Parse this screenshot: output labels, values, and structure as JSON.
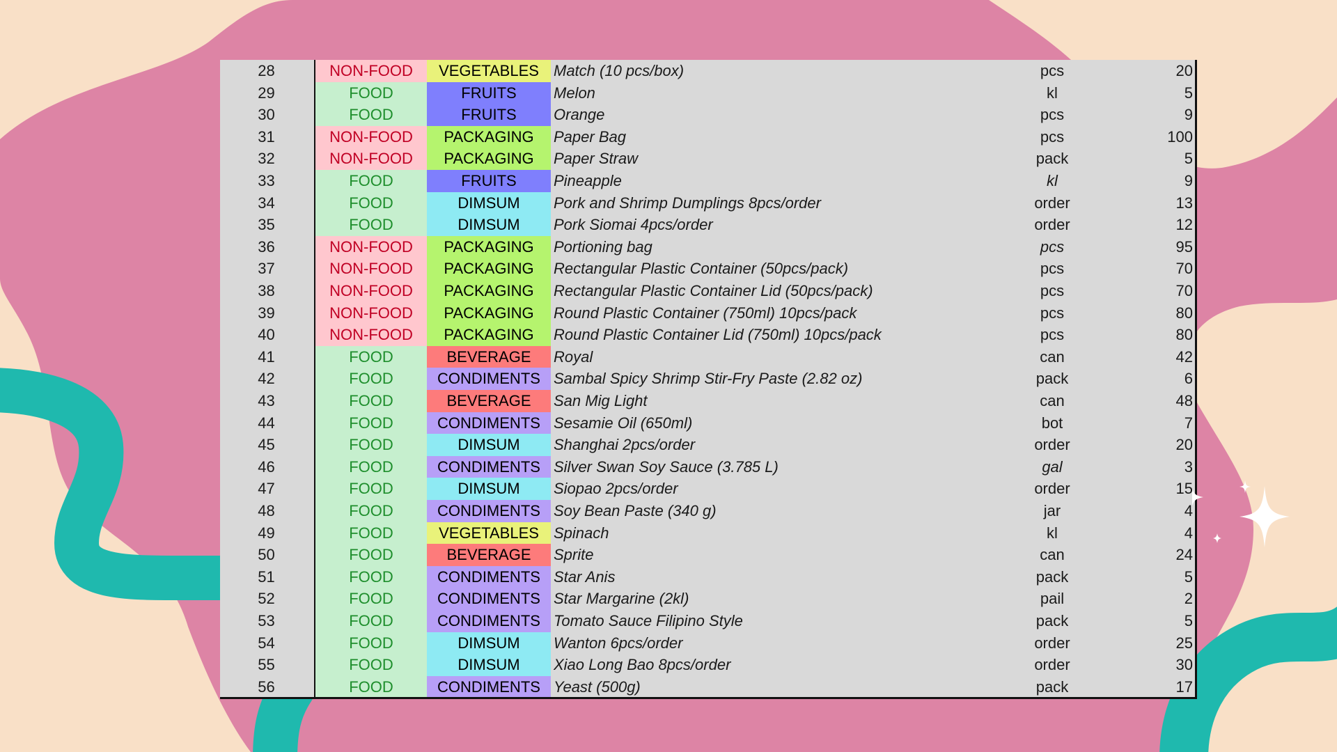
{
  "colors": {
    "background": "#f9e0c7",
    "blob_pink": "#dd84a5",
    "ribbon_teal": "#1fb9ae",
    "sheet_gray": "#d9d9d9",
    "type_food_fill": "#c6efce",
    "type_food_text": "#1e8e2c",
    "type_nonfood_fill": "#ffc7ce",
    "type_nonfood_text": "#c00024",
    "cat_vegetables": "#e9f27a",
    "cat_fruits": "#7f7ffd",
    "cat_packaging": "#b5f46e",
    "cat_dimsum": "#8eeaf3",
    "cat_beverage": "#fd7b7b",
    "cat_condiments": "#b79ff7"
  },
  "icons": {
    "sparkle": "sparkle-icon"
  },
  "rows": [
    {
      "num": "28",
      "type": "NON-FOOD",
      "category": "VEGETABLES",
      "item": "Match (10 pcs/box)",
      "unit": "pcs",
      "qty": "20"
    },
    {
      "num": "29",
      "type": "FOOD",
      "category": "FRUITS",
      "item": "Melon",
      "unit": "kl",
      "qty": "5"
    },
    {
      "num": "30",
      "type": "FOOD",
      "category": "FRUITS",
      "item": "Orange",
      "unit": "pcs",
      "qty": "9"
    },
    {
      "num": "31",
      "type": "NON-FOOD",
      "category": "PACKAGING",
      "item": "Paper Bag",
      "unit": "pcs",
      "qty": "100"
    },
    {
      "num": "32",
      "type": "NON-FOOD",
      "category": "PACKAGING",
      "item": "Paper Straw",
      "unit": "pack",
      "qty": "5"
    },
    {
      "num": "33",
      "type": "FOOD",
      "category": "FRUITS",
      "item": "Pineapple",
      "unit": "kl",
      "qty": "9"
    },
    {
      "num": "34",
      "type": "FOOD",
      "category": "DIMSUM",
      "item": "Pork and Shrimp Dumplings 8pcs/order",
      "unit": "order",
      "qty": "13"
    },
    {
      "num": "35",
      "type": "FOOD",
      "category": "DIMSUM",
      "item": "Pork Siomai 4pcs/order",
      "unit": "order",
      "qty": "12"
    },
    {
      "num": "36",
      "type": "NON-FOOD",
      "category": "PACKAGING",
      "item": "Portioning bag",
      "unit": "pcs",
      "qty": "95"
    },
    {
      "num": "37",
      "type": "NON-FOOD",
      "category": "PACKAGING",
      "item": "Rectangular Plastic Container (50pcs/pack)",
      "unit": "pcs",
      "qty": "70"
    },
    {
      "num": "38",
      "type": "NON-FOOD",
      "category": "PACKAGING",
      "item": "Rectangular Plastic Container Lid (50pcs/pack)",
      "unit": "pcs",
      "qty": "70"
    },
    {
      "num": "39",
      "type": "NON-FOOD",
      "category": "PACKAGING",
      "item": "Round Plastic Container (750ml) 10pcs/pack",
      "unit": "pcs",
      "qty": "80"
    },
    {
      "num": "40",
      "type": "NON-FOOD",
      "category": "PACKAGING",
      "item": "Round Plastic Container Lid (750ml) 10pcs/pack",
      "unit": "pcs",
      "qty": "80"
    },
    {
      "num": "41",
      "type": "FOOD",
      "category": "BEVERAGE",
      "item": "Royal",
      "unit": "can",
      "qty": "42"
    },
    {
      "num": "42",
      "type": "FOOD",
      "category": "CONDIMENTS",
      "item": "Sambal Spicy Shrimp Stir-Fry Paste (2.82 oz)",
      "unit": "pack",
      "qty": "6"
    },
    {
      "num": "43",
      "type": "FOOD",
      "category": "BEVERAGE",
      "item": "San Mig Light",
      "unit": "can",
      "qty": "48"
    },
    {
      "num": "44",
      "type": "FOOD",
      "category": "CONDIMENTS",
      "item": "Sesamie Oil (650ml)",
      "unit": "bot",
      "qty": "7"
    },
    {
      "num": "45",
      "type": "FOOD",
      "category": "DIMSUM",
      "item": "Shanghai 2pcs/order",
      "unit": "order",
      "qty": "20"
    },
    {
      "num": "46",
      "type": "FOOD",
      "category": "CONDIMENTS",
      "item": "Silver Swan Soy Sauce (3.785 L)",
      "unit": "gal",
      "qty": "3"
    },
    {
      "num": "47",
      "type": "FOOD",
      "category": "DIMSUM",
      "item": "Siopao 2pcs/order",
      "unit": "order",
      "qty": "15"
    },
    {
      "num": "48",
      "type": "FOOD",
      "category": "CONDIMENTS",
      "item": "Soy Bean Paste (340 g)",
      "unit": "jar",
      "qty": "4"
    },
    {
      "num": "49",
      "type": "FOOD",
      "category": "VEGETABLES",
      "item": "Spinach",
      "unit": "kl",
      "qty": "4"
    },
    {
      "num": "50",
      "type": "FOOD",
      "category": "BEVERAGE",
      "item": "Sprite",
      "unit": "can",
      "qty": "24"
    },
    {
      "num": "51",
      "type": "FOOD",
      "category": "CONDIMENTS",
      "item": "Star Anis",
      "unit": "pack",
      "qty": "5"
    },
    {
      "num": "52",
      "type": "FOOD",
      "category": "CONDIMENTS",
      "item": "Star Margarine (2kl)",
      "unit": "pail",
      "qty": "2"
    },
    {
      "num": "53",
      "type": "FOOD",
      "category": "CONDIMENTS",
      "item": "Tomato Sauce Filipino Style",
      "unit": "pack",
      "qty": "5"
    },
    {
      "num": "54",
      "type": "FOOD",
      "category": "DIMSUM",
      "item": "Wanton 6pcs/order",
      "unit": "order",
      "qty": "25"
    },
    {
      "num": "55",
      "type": "FOOD",
      "category": "DIMSUM",
      "item": "Xiao Long Bao 8pcs/order",
      "unit": "order",
      "qty": "30"
    },
    {
      "num": "56",
      "type": "FOOD",
      "category": "CONDIMENTS",
      "item": "Yeast (500g)",
      "unit": "pack",
      "qty": "17"
    }
  ]
}
